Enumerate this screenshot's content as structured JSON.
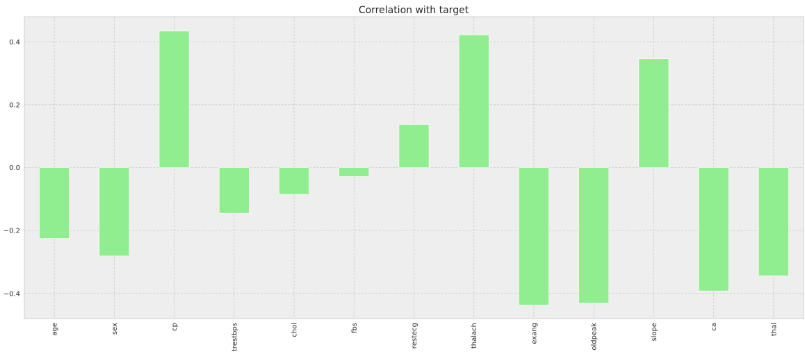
{
  "chart_data": {
    "type": "bar",
    "title": "Correlation with target",
    "xlabel": "",
    "ylabel": "",
    "categories": [
      "age",
      "sex",
      "cp",
      "trestbps",
      "chol",
      "fbs",
      "restecg",
      "thalach",
      "exang",
      "oldpeak",
      "slope",
      "ca",
      "thal"
    ],
    "values": [
      -0.225,
      -0.281,
      0.434,
      -0.145,
      -0.085,
      -0.028,
      0.137,
      0.422,
      -0.437,
      -0.431,
      0.346,
      -0.392,
      -0.344
    ],
    "ylim": [
      -0.48,
      0.48
    ],
    "yticks": [
      -0.4,
      -0.2,
      0.0,
      0.2,
      0.4
    ],
    "ytick_labels": [
      "−0.4",
      "−0.2",
      "0.0",
      "0.2",
      "0.4"
    ],
    "grid": true,
    "legend": "none",
    "bar_color": "#90ee90",
    "background_color": "#eeeeee"
  }
}
